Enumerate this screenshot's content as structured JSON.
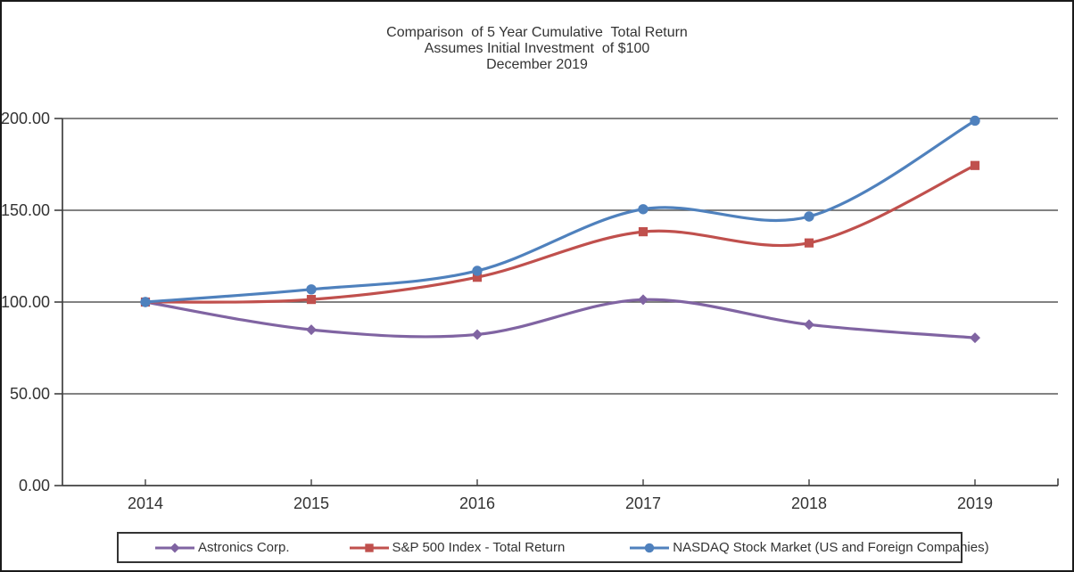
{
  "colors": {
    "astronics": "#8064A2",
    "sp500": "#C0504D",
    "nasdaq": "#4F81BD",
    "gridline": "#595959",
    "axis": "#404040",
    "text": "#333333",
    "legend_border": "#333333",
    "frame_border": "#1a1a1a",
    "background": "#ffffff"
  },
  "chart_data": {
    "type": "line",
    "title_text": "Comparison  of 5 Year Cumulative  Total Return\nAssumes Initial Investment  of $100\nDecember 2019",
    "title_lines": [
      "Comparison  of 5 Year Cumulative  Total Return",
      "Assumes Initial Investment  of $100",
      "December 2019"
    ],
    "categories": [
      "2014",
      "2015",
      "2016",
      "2017",
      "2018",
      "2019"
    ],
    "series": [
      {
        "name": "Astronics Corp.",
        "color": "#8064A2",
        "marker": "diamond",
        "values": [
          100.0,
          84.9,
          82.3,
          101.3,
          87.7,
          80.5
        ]
      },
      {
        "name": "S&P 500 Index - Total Return",
        "color": "#C0504D",
        "marker": "square",
        "values": [
          100.0,
          101.4,
          113.5,
          138.3,
          132.2,
          174.4
        ]
      },
      {
        "name": "NASDAQ Stock Market (US and Foreign Companies)",
        "color": "#4F81BD",
        "marker": "circle",
        "values": [
          100.0,
          106.9,
          117.0,
          150.6,
          146.6,
          198.8
        ]
      }
    ],
    "xlabel": "",
    "ylabel": "",
    "ylim": [
      0,
      200
    ],
    "yticks": [
      0,
      50,
      100,
      150,
      200
    ],
    "ytick_labels": [
      "0.00",
      "50.00",
      "100.00",
      "150.00",
      "200.00"
    ],
    "grid": true,
    "smoothed_lines": true,
    "legend_position": "bottom"
  }
}
